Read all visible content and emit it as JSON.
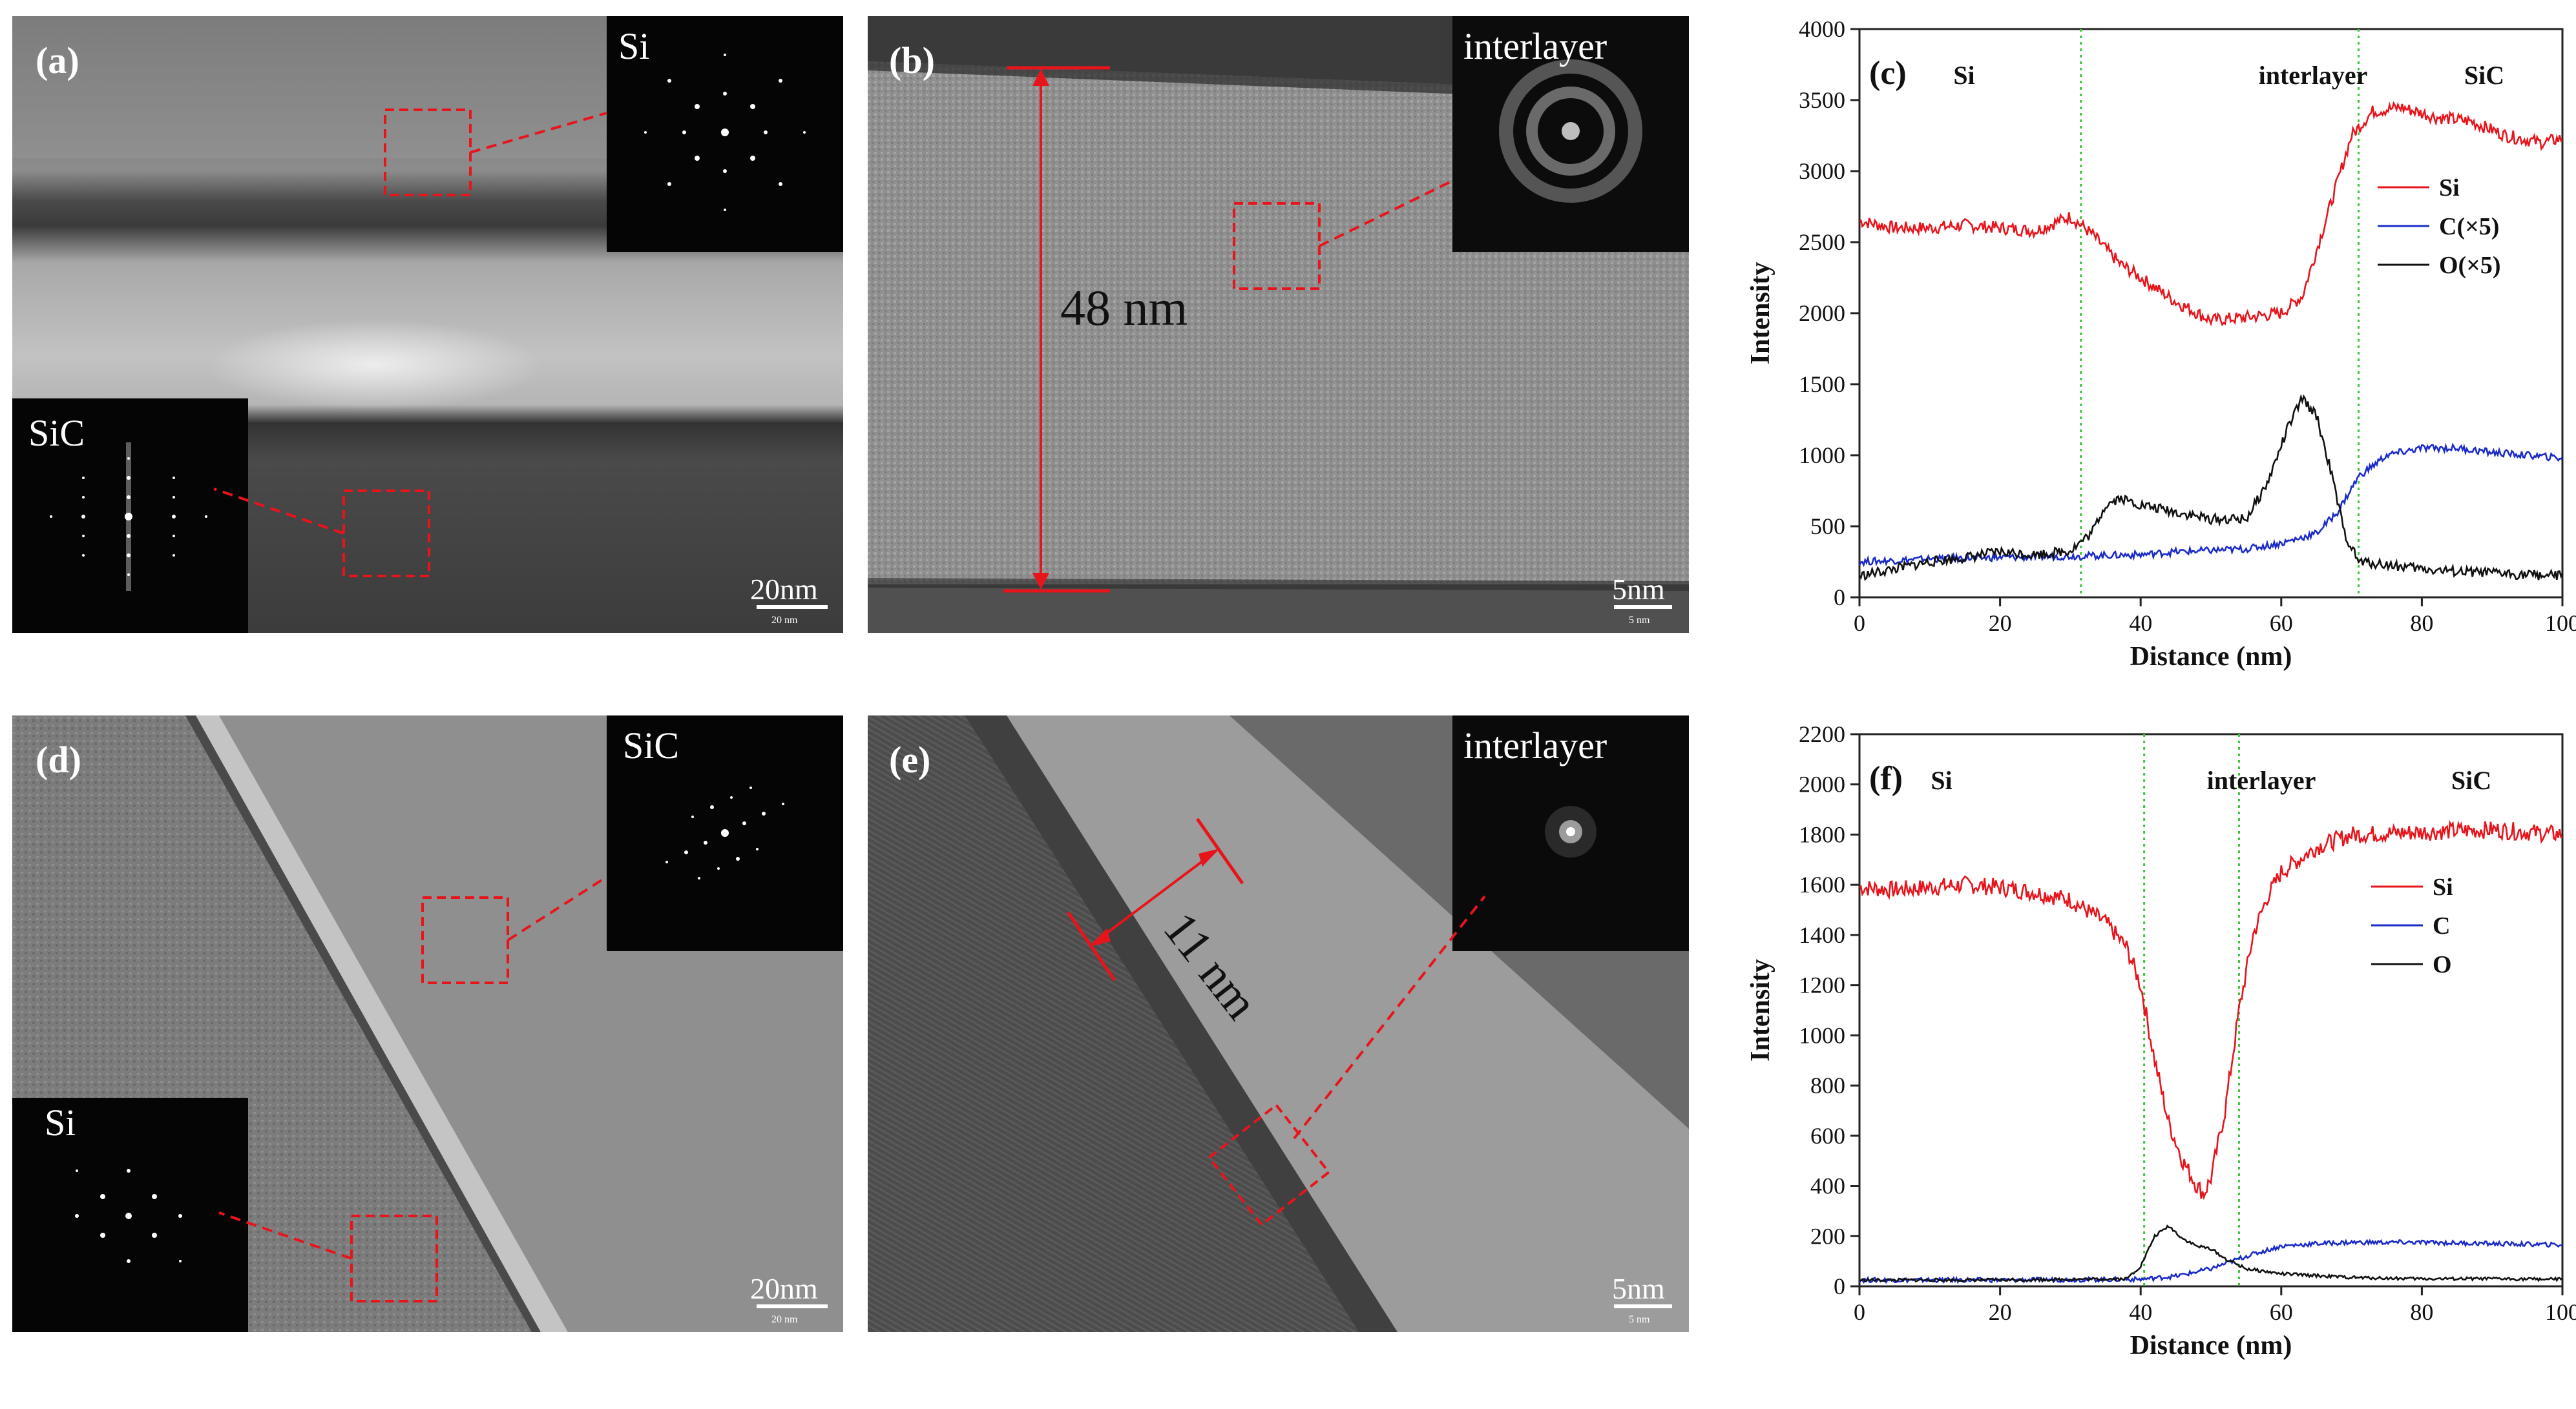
{
  "panels": {
    "a": {
      "label": "(a)",
      "inset_top_label": "Si",
      "inset_bottom_label": "SiC",
      "scale_bar": "20nm",
      "scale_bar_small": "20 nm"
    },
    "b": {
      "label": "(b)",
      "inset_label": "interlayer",
      "measurement": "48 nm",
      "scale_bar": "5nm",
      "scale_bar_small": "5 nm"
    },
    "d": {
      "label": "(d)",
      "inset_top_label": "SiC",
      "inset_bottom_label": "Si",
      "scale_bar": "20nm",
      "scale_bar_small": "20 nm"
    },
    "e": {
      "label": "(e)",
      "inset_label": "interlayer",
      "measurement": "11 nm",
      "scale_bar": "5nm",
      "scale_bar_small": "5 nm"
    }
  },
  "chart_data": [
    {
      "id": "c",
      "type": "line",
      "panel_label": "(c)",
      "region_labels": [
        "Si",
        "interlayer",
        "SiC"
      ],
      "xlabel": "Distance (nm)",
      "ylabel": "Intensity",
      "xlim": [
        0,
        100
      ],
      "ylim": [
        0,
        4000
      ],
      "xticks": [
        0,
        20,
        40,
        60,
        80,
        100
      ],
      "yticks": [
        0,
        500,
        1000,
        1500,
        2000,
        2500,
        3000,
        3500,
        4000
      ],
      "boundaries": [
        31.5,
        71
      ],
      "legend_position": "right",
      "series": [
        {
          "name": "Si",
          "color": "#e8141c",
          "x": [
            0,
            5,
            10,
            15,
            20,
            25,
            30,
            33,
            37,
            40,
            45,
            50,
            55,
            60,
            63,
            66,
            70,
            73,
            77,
            82,
            87,
            92,
            97,
            100
          ],
          "y": [
            2650,
            2600,
            2600,
            2620,
            2600,
            2580,
            2680,
            2560,
            2350,
            2250,
            2080,
            1950,
            1970,
            2000,
            2120,
            2600,
            3250,
            3420,
            3450,
            3380,
            3350,
            3250,
            3200,
            3230
          ]
        },
        {
          "name": "C(×5)",
          "color": "#1a2bc8",
          "x": [
            0,
            10,
            20,
            30,
            40,
            45,
            50,
            55,
            60,
            65,
            68,
            71,
            75,
            80,
            85,
            90,
            95,
            100
          ],
          "y": [
            250,
            270,
            280,
            290,
            300,
            320,
            330,
            340,
            380,
            450,
            600,
            850,
            1000,
            1050,
            1050,
            1020,
            1000,
            980
          ]
        },
        {
          "name": "O(×5)",
          "color": "#111111",
          "x": [
            0,
            5,
            10,
            15,
            20,
            25,
            30,
            33,
            35,
            37,
            40,
            45,
            50,
            55,
            58,
            61,
            63,
            65,
            67,
            69,
            71,
            75,
            80,
            85,
            90,
            95,
            100
          ],
          "y": [
            150,
            200,
            250,
            280,
            320,
            300,
            330,
            450,
            650,
            700,
            650,
            600,
            550,
            550,
            800,
            1200,
            1400,
            1280,
            900,
            450,
            250,
            230,
            200,
            180,
            170,
            160,
            150
          ]
        }
      ]
    },
    {
      "id": "f",
      "type": "line",
      "panel_label": "(f)",
      "region_labels": [
        "Si",
        "interlayer",
        "SiC"
      ],
      "xlabel": "Distance (nm)",
      "ylabel": "Intensity",
      "xlim": [
        0,
        100
      ],
      "ylim": [
        0,
        2200
      ],
      "xticks": [
        0,
        20,
        40,
        60,
        80,
        100
      ],
      "yticks": [
        0,
        200,
        400,
        600,
        800,
        1000,
        1200,
        1400,
        1600,
        1800,
        2000,
        2200
      ],
      "boundaries": [
        40.5,
        54
      ],
      "legend_position": "right",
      "series": [
        {
          "name": "Si",
          "color": "#e8141c",
          "x": [
            0,
            5,
            10,
            15,
            20,
            25,
            30,
            35,
            38,
            40,
            42,
            44,
            46,
            48,
            49,
            50,
            52,
            54,
            56,
            58,
            60,
            65,
            70,
            80,
            90,
            100
          ],
          "y": [
            1590,
            1580,
            1590,
            1600,
            1590,
            1570,
            1540,
            1450,
            1350,
            1200,
            900,
            650,
            500,
            400,
            370,
            430,
            700,
            1100,
            1400,
            1550,
            1650,
            1750,
            1800,
            1810,
            1820,
            1800
          ]
        },
        {
          "name": "C",
          "color": "#1a2bc8",
          "x": [
            0,
            20,
            40,
            45,
            50,
            55,
            60,
            65,
            70,
            80,
            90,
            100
          ],
          "y": [
            25,
            25,
            28,
            40,
            70,
            120,
            160,
            170,
            175,
            175,
            170,
            165
          ]
        },
        {
          "name": "O",
          "color": "#111111",
          "x": [
            0,
            20,
            38,
            40,
            42,
            44,
            46,
            48,
            50,
            52,
            55,
            60,
            70,
            80,
            90,
            100
          ],
          "y": [
            25,
            25,
            30,
            80,
            200,
            240,
            190,
            160,
            150,
            110,
            70,
            50,
            35,
            30,
            30,
            28
          ]
        }
      ]
    }
  ]
}
